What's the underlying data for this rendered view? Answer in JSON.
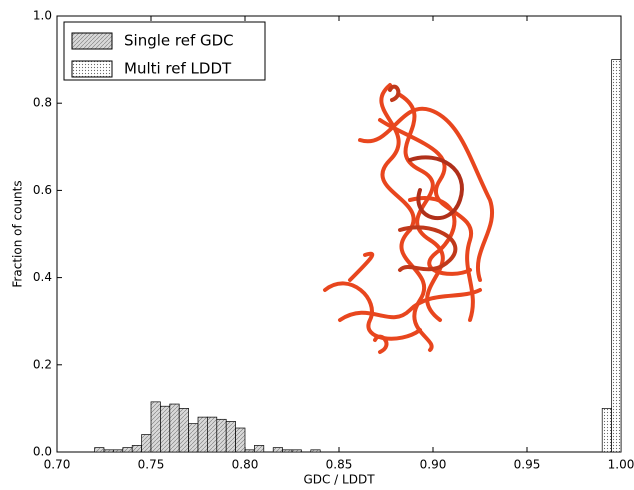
{
  "chart_data": {
    "type": "histogram",
    "xlabel": "GDC / LDDT",
    "ylabel": "Fraction of counts",
    "xlim": [
      0.7,
      1.0
    ],
    "xticks": [
      {
        "value": 0.7,
        "label": "0.70"
      },
      0.75,
      {
        "value": 0.8,
        "label": "0.80"
      },
      0.85,
      {
        "value": 0.9,
        "label": "0.90"
      },
      0.95,
      {
        "value": 1.0,
        "label": "1.00"
      }
    ],
    "ylim": [
      0,
      1.0
    ],
    "yticks": [
      {
        "value": 0,
        "label": "0.0"
      },
      0.2,
      0.4,
      0.6,
      0.8,
      {
        "value": 1.0,
        "label": "1.0"
      }
    ],
    "legend": "upper left",
    "series": [
      {
        "name": "Single ref GDC",
        "color": "#d9d9d9",
        "hatch": "diagonal",
        "bins": [
          0.72,
          0.725,
          0.73,
          0.735,
          0.74,
          0.745,
          0.75,
          0.755,
          0.76,
          0.765,
          0.77,
          0.775,
          0.78,
          0.785,
          0.79,
          0.795,
          0.8,
          0.805,
          0.81,
          0.815,
          0.82,
          0.825,
          0.83,
          0.835,
          0.84
        ],
        "values": [
          0.01,
          0.005,
          0.005,
          0.01,
          0.015,
          0.04,
          0.115,
          0.105,
          0.11,
          0.1,
          0.065,
          0.08,
          0.08,
          0.075,
          0.07,
          0.055,
          0.005,
          0.015,
          0,
          0.01,
          0.005,
          0.005,
          0,
          0.005
        ]
      },
      {
        "name": "Multi ref LDDT",
        "color": "#ffffff",
        "hatch": "dots",
        "bins": [
          0.99,
          0.995,
          1.0
        ],
        "values": [
          0.1,
          0.9
        ]
      }
    ]
  }
}
